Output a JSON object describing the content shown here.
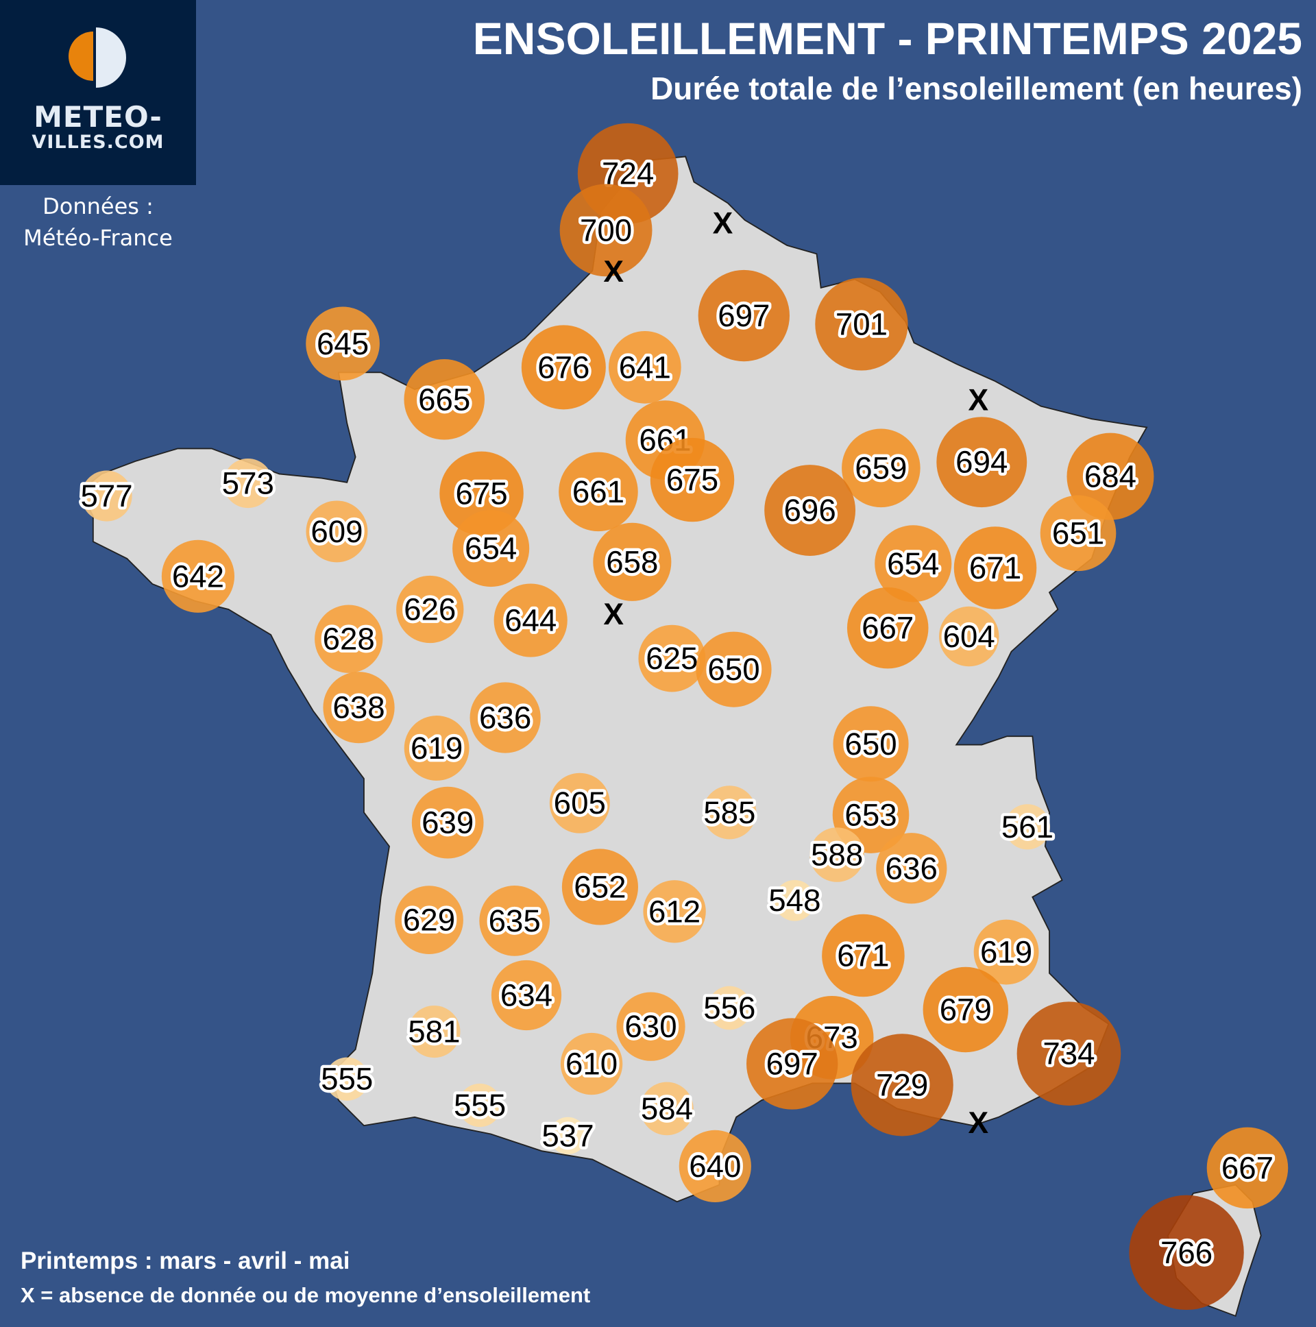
{
  "logo": {
    "line1": "METEO-",
    "line2": "VILLES.COM"
  },
  "source": {
    "line1": "Données :",
    "line2": "Météo-France"
  },
  "header": {
    "title": "ENSOLEILLEMENT - PRINTEMPS 2025",
    "subtitle": "Durée totale de l’ensoleillement (en heures)"
  },
  "footer": {
    "season_note": "Printemps : mars - avril - mai",
    "missing_note": "X = absence de donnée ou de moyenne d’ensoleillement"
  },
  "missing_marker": "X",
  "colors": {
    "ocean": "#355488",
    "land": "#d9d9d9",
    "logo_bg": "#021e3f",
    "low": "#fde6b4",
    "mid": "#f7a23e",
    "high": "#f08a1c",
    "very_high": "#a8400a"
  },
  "stations": [
    724,
    700,
    697,
    701,
    645,
    676,
    641,
    665,
    661,
    675,
    675,
    661,
    659,
    694,
    684,
    577,
    573,
    609,
    654,
    696,
    651,
    642,
    658,
    654,
    671,
    626,
    644,
    667,
    604,
    628,
    625,
    650,
    638,
    636,
    619,
    650,
    605,
    639,
    585,
    653,
    561,
    588,
    636,
    652,
    548,
    629,
    635,
    612,
    671,
    619,
    634,
    556,
    630,
    581,
    679,
    673,
    697,
    729,
    734,
    610,
    555,
    555,
    584,
    537,
    640,
    667,
    766
  ]
}
